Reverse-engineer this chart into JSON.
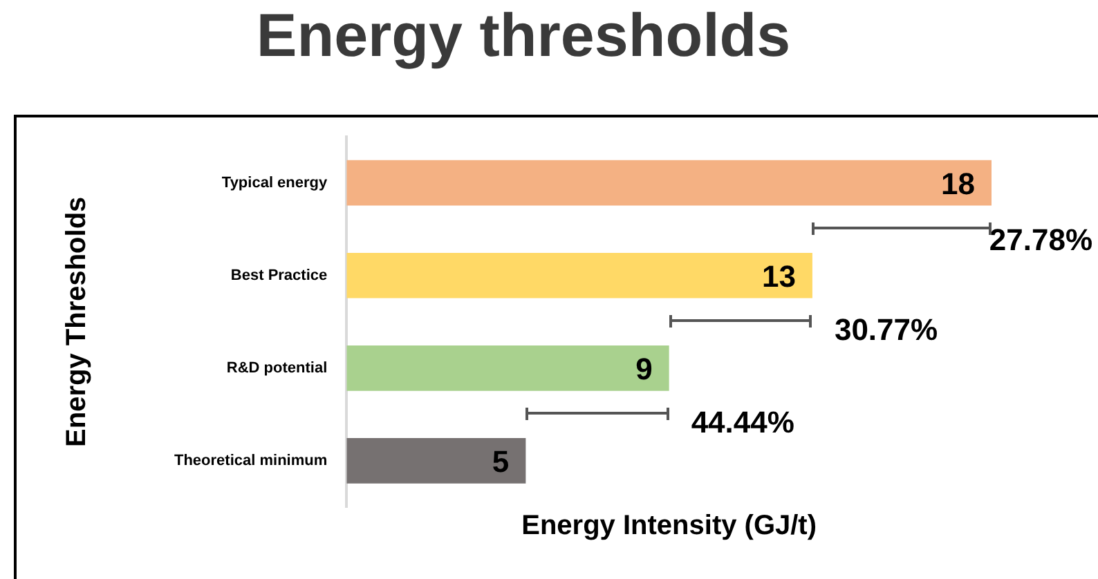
{
  "chart_data": {
    "type": "bar",
    "orientation": "horizontal",
    "title": "Energy thresholds",
    "xlabel": "Energy Intensity (GJ/t)",
    "ylabel": "Energy Thresholds",
    "categories": [
      "Typical energy",
      "Best Practice",
      "R&D potential",
      "Theoretical minimum"
    ],
    "values": [
      18,
      13,
      9,
      5
    ],
    "colors": [
      "#f4b183",
      "#ffd966",
      "#a9d18e",
      "#767171"
    ],
    "data_labels": true,
    "tick_labels": "y",
    "grid": false,
    "legend": false,
    "annotations": [
      "27.78%",
      "30.77%",
      "44.44%"
    ]
  }
}
